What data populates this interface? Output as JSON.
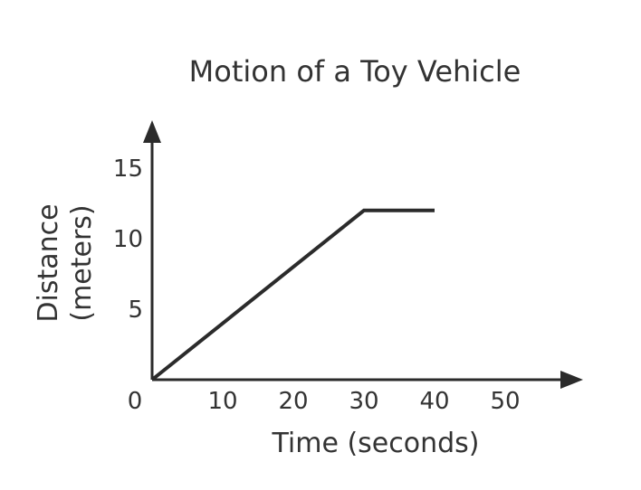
{
  "chart_data": {
    "type": "line",
    "title": "Motion of a Toy Vehicle",
    "xlabel": "Time (seconds)",
    "ylabel_line1": "Distance",
    "ylabel_line2": "(meters)",
    "x_ticks": [
      "0",
      "10",
      "20",
      "30",
      "40",
      "50"
    ],
    "y_ticks": [
      "5",
      "10",
      "15"
    ],
    "xlim": [
      0,
      60
    ],
    "ylim": [
      0,
      17
    ],
    "grid": false,
    "series": [
      {
        "x": [
          0,
          30,
          40
        ],
        "y": [
          0,
          12,
          12
        ]
      }
    ],
    "colors": {
      "line": "#2b2b2b",
      "axis": "#2b2b2b",
      "text": "#333333"
    }
  }
}
